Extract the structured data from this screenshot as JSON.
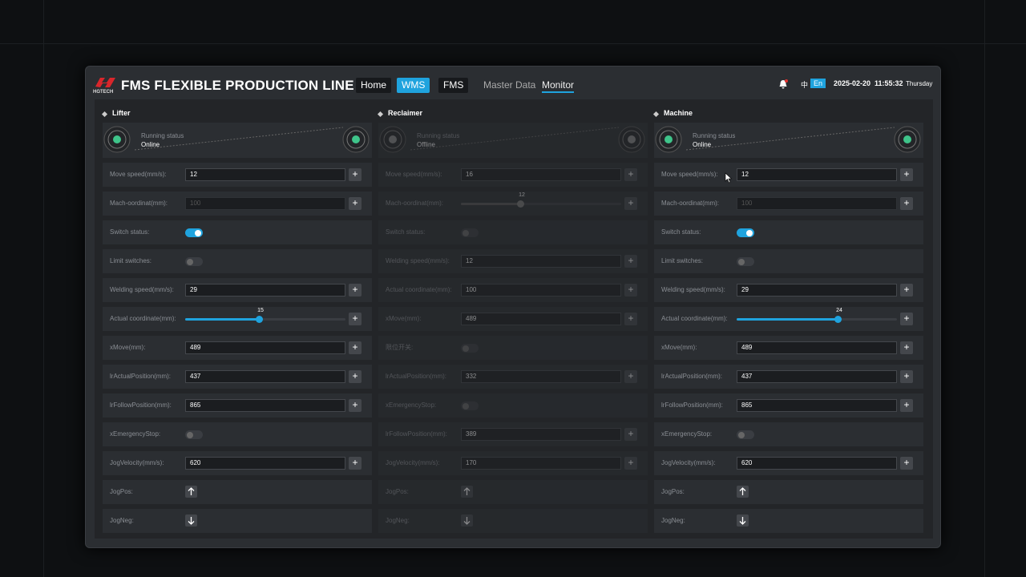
{
  "header": {
    "logo": "HGTECH",
    "title": "FMS FLEXIBLE PRODUCTION LINE",
    "nav": [
      {
        "label": "Home",
        "style": "box"
      },
      {
        "label": "WMS",
        "style": "active"
      },
      {
        "label": "FMS",
        "style": "box"
      },
      {
        "label": "Master Data",
        "style": "text"
      },
      {
        "label": "Monitor",
        "style": "underline"
      }
    ],
    "lang": [
      {
        "label": "中",
        "active": false
      },
      {
        "label": "En",
        "active": true
      }
    ],
    "date": "2025-02-20",
    "time": "11:55:32",
    "weekday": "Thursday"
  },
  "panels": [
    {
      "title": "Lifter",
      "enabled": true,
      "status_label": "Running status",
      "status": "Online",
      "rows": [
        {
          "label": "Move speed(mm/s):",
          "kind": "input",
          "value": "12"
        },
        {
          "label": "Mach-oordinat(mm):",
          "kind": "placeholder",
          "value": "100"
        },
        {
          "label": "Switch status:",
          "kind": "toggle",
          "on": true
        },
        {
          "label": "Limit switches:",
          "kind": "toggle",
          "on": false
        },
        {
          "label": "Welding speed(mm/s):",
          "kind": "input",
          "value": "29"
        },
        {
          "label": "Actual coordinate(mm):",
          "kind": "slider",
          "value": "15"
        },
        {
          "label": "xMove(mm):",
          "kind": "input",
          "value": "489"
        },
        {
          "label": "lrActualPosition(mm):",
          "kind": "input",
          "value": "437"
        },
        {
          "label": "lrFollowPosition(mm):",
          "kind": "input",
          "value": "865"
        },
        {
          "label": "xEmergencyStop:",
          "kind": "toggle",
          "on": false
        },
        {
          "label": "JogVelocity(mm/s):",
          "kind": "input",
          "value": "620"
        },
        {
          "label": "JogPos:",
          "kind": "up"
        },
        {
          "label": "JogNeg:",
          "kind": "down"
        }
      ]
    },
    {
      "title": "Reclaimer",
      "enabled": false,
      "status_label": "Running status",
      "status": "Offline",
      "rows": [
        {
          "label": "Move speed(mm/s):",
          "kind": "input",
          "value": "16"
        },
        {
          "label": "Mach-oordinat(mm):",
          "kind": "slider",
          "value": "12"
        },
        {
          "label": "Switch status:",
          "kind": "toggle",
          "on": false
        },
        {
          "label": "Welding speed(mm/s):",
          "kind": "input",
          "value": "12"
        },
        {
          "label": "Actual coordinate(mm):",
          "kind": "input",
          "value": "100"
        },
        {
          "label": "xMove(mm):",
          "kind": "input",
          "value": "489"
        },
        {
          "label": "限位开关:",
          "kind": "toggle",
          "on": false
        },
        {
          "label": "lrActualPosition(mm):",
          "kind": "input",
          "value": "332"
        },
        {
          "label": "xEmergencyStop:",
          "kind": "toggle",
          "on": false
        },
        {
          "label": "lrFollowPosition(mm):",
          "kind": "input",
          "value": "389"
        },
        {
          "label": "JogVelocity(mm/s):",
          "kind": "input",
          "value": "170"
        },
        {
          "label": "JogPos:",
          "kind": "up"
        },
        {
          "label": "JogNeg:",
          "kind": "down"
        }
      ]
    },
    {
      "title": "Machine",
      "enabled": true,
      "status_label": "Running status",
      "status": "Online",
      "rows": [
        {
          "label": "Move speed(mm/s):",
          "kind": "input",
          "value": "12"
        },
        {
          "label": "Mach-oordinat(mm):",
          "kind": "placeholder",
          "value": "100"
        },
        {
          "label": "Switch status:",
          "kind": "toggle",
          "on": true
        },
        {
          "label": "Limit switches:",
          "kind": "toggle",
          "on": false
        },
        {
          "label": "Welding speed(mm/s):",
          "kind": "input",
          "value": "29"
        },
        {
          "label": "Actual coordinate(mm):",
          "kind": "slider",
          "value": "24"
        },
        {
          "label": "xMove(mm):",
          "kind": "input",
          "value": "489"
        },
        {
          "label": "lrActualPosition(mm):",
          "kind": "input",
          "value": "437"
        },
        {
          "label": "lrFollowPosition(mm):",
          "kind": "input",
          "value": "865"
        },
        {
          "label": "xEmergencyStop:",
          "kind": "toggle",
          "on": false
        },
        {
          "label": "JogVelocity(mm/s):",
          "kind": "input",
          "value": "620"
        },
        {
          "label": "JogPos:",
          "kind": "up"
        },
        {
          "label": "JogNeg:",
          "kind": "down"
        }
      ]
    }
  ]
}
